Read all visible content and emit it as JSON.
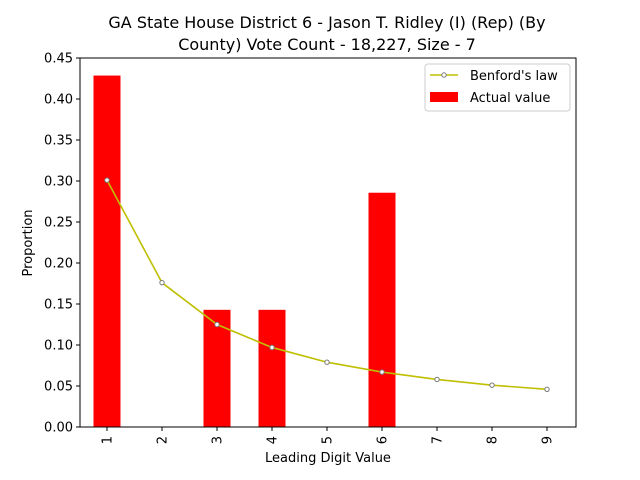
{
  "chart_data": {
    "type": "bar",
    "title_lines": [
      "GA State House District 6 - Jason T. Ridley (I) (Rep) (By",
      "County) Vote Count - 18,227, Size - 7"
    ],
    "xlabel": "Leading Digit Value",
    "ylabel": "Proportion",
    "categories": [
      "1",
      "2",
      "3",
      "4",
      "5",
      "6",
      "7",
      "8",
      "9"
    ],
    "ylim": [
      0,
      0.45
    ],
    "yticks": [
      "0.00",
      "0.05",
      "0.10",
      "0.15",
      "0.20",
      "0.25",
      "0.30",
      "0.35",
      "0.40",
      "0.45"
    ],
    "legend_position": "top-right",
    "grid": false,
    "series": [
      {
        "name": "Benford's law",
        "kind": "line",
        "color": "#bfbf00",
        "values": [
          0.301,
          0.176,
          0.125,
          0.097,
          0.079,
          0.067,
          0.058,
          0.051,
          0.046
        ]
      },
      {
        "name": "Actual value",
        "kind": "bar",
        "color": "#ff0000",
        "values": [
          0.4286,
          0,
          0.1429,
          0.1429,
          0,
          0.2857,
          0,
          0,
          0
        ]
      }
    ]
  }
}
